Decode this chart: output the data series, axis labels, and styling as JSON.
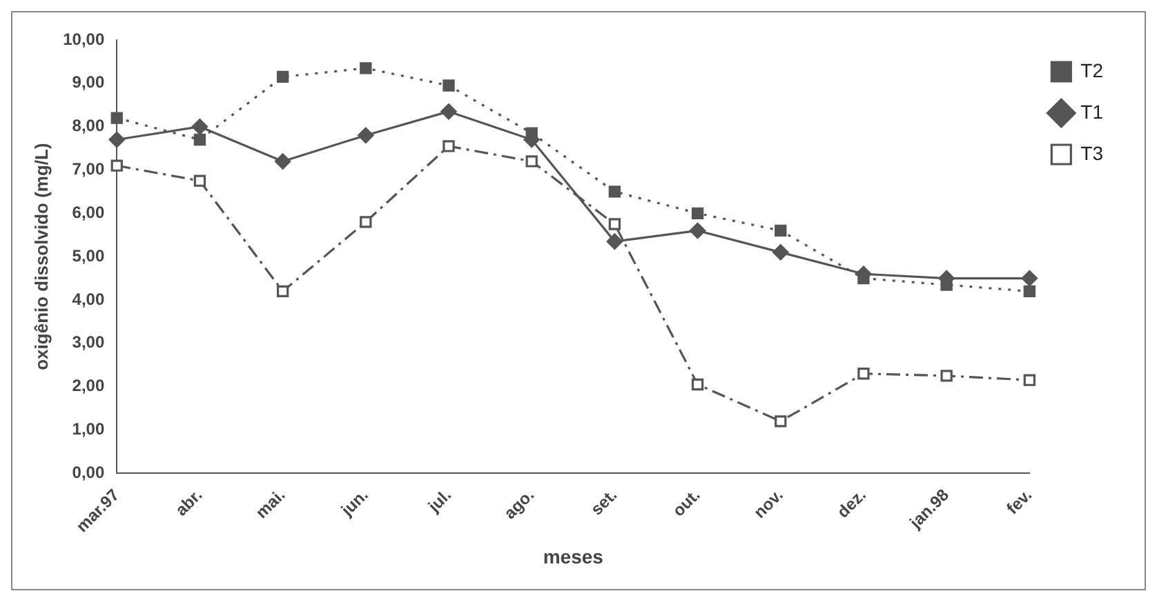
{
  "chart_data": {
    "type": "line",
    "xlabel": "meses",
    "ylabel": "oxigênio dissolvido (mg/L)",
    "categories": [
      "mar.97",
      "abr.",
      "mai.",
      "jun.",
      "jul.",
      "ago.",
      "set.",
      "out.",
      "nov.",
      "dez.",
      "jan.98",
      "fev."
    ],
    "series": [
      {
        "name": "T1",
        "color": "#555555",
        "marker": "diamond",
        "line_style": "solid",
        "values": [
          7.7,
          8.0,
          7.2,
          7.8,
          8.35,
          7.7,
          5.35,
          5.6,
          5.1,
          4.6,
          4.5,
          4.5
        ]
      },
      {
        "name": "T2",
        "color": "#555555",
        "marker": "square",
        "line_style": "dotted",
        "values": [
          8.2,
          7.7,
          9.15,
          9.35,
          8.95,
          7.85,
          6.5,
          6.0,
          5.6,
          4.5,
          4.35,
          4.2
        ]
      },
      {
        "name": "T3",
        "color": "#555555",
        "marker": "square",
        "line_style": "dashed",
        "values": [
          7.1,
          6.75,
          4.2,
          5.8,
          7.55,
          7.2,
          5.75,
          2.05,
          1.2,
          2.3,
          2.25,
          2.15
        ]
      }
    ],
    "ylim": [
      0,
      10
    ],
    "yticks": [
      {
        "value": 0,
        "label": "0,00"
      },
      {
        "value": 1,
        "label": "1,00"
      },
      {
        "value": 2,
        "label": "2,00"
      },
      {
        "value": 3,
        "label": "3,00"
      },
      {
        "value": 4,
        "label": "4,00"
      },
      {
        "value": 5,
        "label": "5,00"
      },
      {
        "value": 6,
        "label": "6,00"
      },
      {
        "value": 7,
        "label": "7,00"
      },
      {
        "value": 8,
        "label": "8,00"
      },
      {
        "value": 9,
        "label": "9,00"
      },
      {
        "value": 10,
        "label": "10,00"
      }
    ],
    "grid": false,
    "legend": "top right"
  }
}
